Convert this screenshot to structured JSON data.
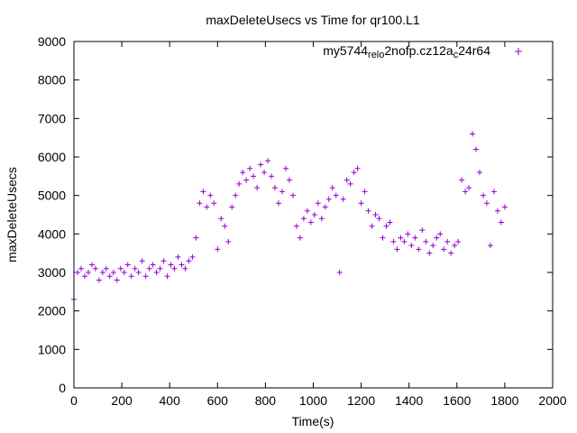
{
  "chart_data": {
    "type": "scatter",
    "title": "maxDeleteUsecs vs Time for qr100.L1",
    "xlabel": "Time(s)",
    "ylabel": "maxDeleteUsecs",
    "xlim": [
      0,
      2000
    ],
    "ylim": [
      0,
      9000
    ],
    "xticks": [
      "0",
      "200",
      "400",
      "600",
      "800",
      "1000",
      "1200",
      "1400",
      "1600",
      "1800",
      "2000"
    ],
    "yticks": [
      "0",
      "1000",
      "2000",
      "3000",
      "4000",
      "5000",
      "6000",
      "7000",
      "8000",
      "9000"
    ],
    "legend": "top-right",
    "marker": "+",
    "series": [
      {
        "name": "my5744_rel_o2nofp.cz12a_c24r64",
        "legend_parts": [
          {
            "text": "my5744",
            "sub": false
          },
          {
            "text": "rel",
            "sub": true
          },
          {
            "text": "o",
            "sub": true
          },
          {
            "text": "2nofp.cz12a",
            "sub": false
          },
          {
            "text": "c",
            "sub": true
          },
          {
            "text": "24r64",
            "sub": false
          }
        ],
        "color": "#9400d3",
        "x": [
          0,
          15,
          30,
          45,
          60,
          75,
          90,
          105,
          120,
          135,
          150,
          165,
          180,
          195,
          210,
          225,
          240,
          255,
          270,
          285,
          300,
          315,
          330,
          345,
          360,
          375,
          390,
          405,
          420,
          435,
          450,
          465,
          480,
          495,
          510,
          525,
          540,
          555,
          570,
          585,
          600,
          615,
          630,
          645,
          660,
          675,
          690,
          705,
          720,
          735,
          750,
          765,
          780,
          795,
          810,
          825,
          840,
          855,
          870,
          885,
          900,
          915,
          930,
          945,
          960,
          975,
          990,
          1005,
          1020,
          1035,
          1050,
          1065,
          1080,
          1095,
          1110,
          1125,
          1140,
          1155,
          1170,
          1185,
          1200,
          1215,
          1230,
          1245,
          1260,
          1275,
          1290,
          1305,
          1320,
          1335,
          1350,
          1365,
          1380,
          1395,
          1410,
          1425,
          1440,
          1455,
          1470,
          1485,
          1500,
          1515,
          1530,
          1545,
          1560,
          1575,
          1590,
          1605,
          1620,
          1635,
          1650,
          1665,
          1680,
          1695,
          1710,
          1725,
          1740,
          1755,
          1770,
          1785,
          1800
        ],
        "y": [
          2300,
          3000,
          3100,
          2900,
          3000,
          3200,
          3100,
          2800,
          3000,
          3100,
          2900,
          3000,
          2800,
          3100,
          3000,
          3200,
          2900,
          3100,
          3000,
          3300,
          2900,
          3100,
          3200,
          3000,
          3100,
          3300,
          2900,
          3200,
          3100,
          3400,
          3200,
          3100,
          3300,
          3400,
          3900,
          4800,
          5100,
          4700,
          5000,
          4800,
          3600,
          4400,
          4200,
          3800,
          4700,
          5000,
          5300,
          5600,
          5400,
          5700,
          5500,
          5200,
          5800,
          5600,
          5900,
          5500,
          5200,
          4800,
          5100,
          5700,
          5400,
          5000,
          4200,
          3900,
          4400,
          4600,
          4300,
          4500,
          4800,
          4400,
          4700,
          4900,
          5200,
          5000,
          3000,
          4900,
          5400,
          5300,
          5600,
          5700,
          4800,
          5100,
          4600,
          4200,
          4500,
          4400,
          3900,
          4200,
          4300,
          3800,
          3600,
          3900,
          3800,
          4000,
          3700,
          3900,
          3600,
          4100,
          3800,
          3500,
          3700,
          3900,
          4000,
          3600,
          3800,
          3500,
          3700,
          3800,
          5400,
          5100,
          5200,
          6600,
          6200,
          5600,
          5000,
          4800,
          3700,
          5100,
          4600,
          4300,
          4700
        ],
        "annotations": []
      }
    ]
  }
}
